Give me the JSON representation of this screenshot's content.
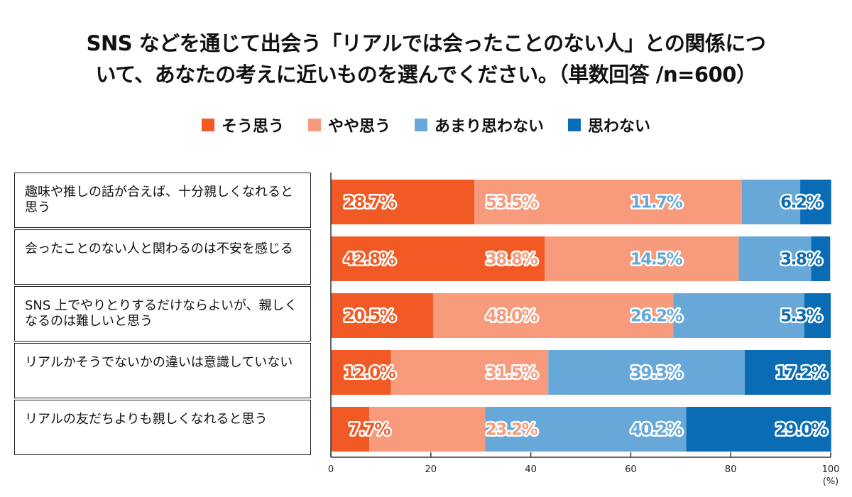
{
  "chart_data": {
    "type": "bar",
    "orientation": "horizontal",
    "stacked": true,
    "title_lines": [
      "SNS などを通じて出会う「リアルでは会ったことのない人」との関係につ",
      "いて、あなたの考えに近いものを選んでください。（単数回答 /n=600）"
    ],
    "categories": [
      "趣味や推しの話が合えば、十分親しくなれると思う",
      "会ったことのない人と関わるのは不安を感じる",
      "SNS 上でやりとりするだけならよいが、親しくなるのは難しいと思う",
      "リアルかそうでないかの違いは意識していない",
      "リアルの友だちよりも親しくなれると思う"
    ],
    "series": [
      {
        "name": "そう思う",
        "color": "#f15a24",
        "values": [
          28.7,
          42.8,
          20.5,
          12.0,
          7.7
        ]
      },
      {
        "name": "やや思う",
        "color": "#f79b7c",
        "values": [
          53.5,
          38.8,
          48.0,
          31.5,
          23.2
        ]
      },
      {
        "name": "あまり思わない",
        "color": "#67a8d8",
        "values": [
          11.7,
          14.5,
          26.2,
          39.3,
          40.2
        ]
      },
      {
        "name": "思わない",
        "color": "#0a6cb5",
        "values": [
          6.2,
          3.8,
          5.3,
          17.2,
          29.0
        ]
      }
    ],
    "xlim": [
      0,
      100
    ],
    "xticks": [
      0,
      20,
      40,
      60,
      80,
      100
    ],
    "xunit": "(%)",
    "legend_position": "top",
    "grid": false
  }
}
